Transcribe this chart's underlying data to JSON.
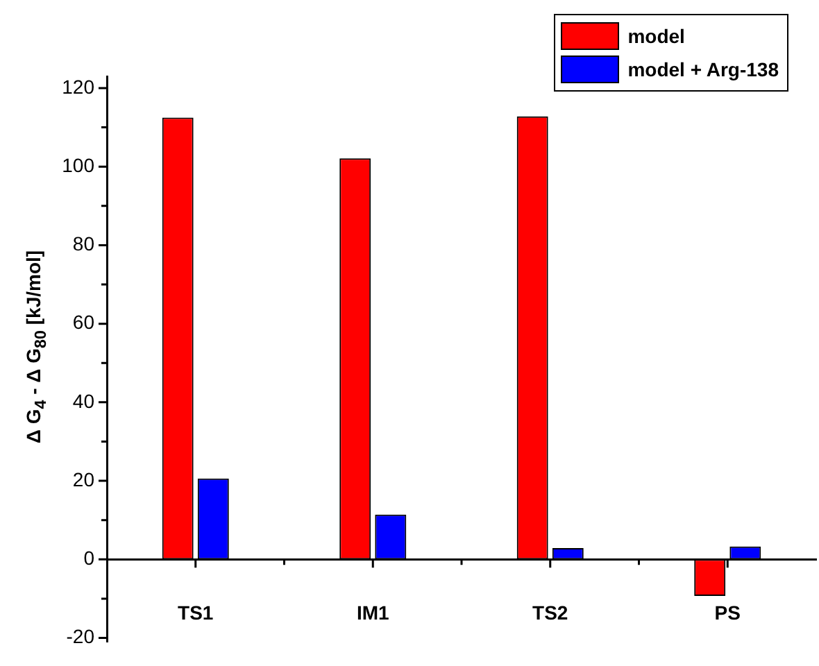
{
  "chart_data": {
    "type": "bar",
    "ylabel": "Δ G$_{4}$ - Δ G$_{80}$ [kJ/mol]",
    "categories": [
      "TS1",
      "IM1",
      "TS2",
      "PS"
    ],
    "series": [
      {
        "name": "model",
        "color": "#ff0000",
        "values": [
          112.5,
          102.1,
          112.8,
          -9.3
        ]
      },
      {
        "name": "model + Arg-138",
        "color": "#0000ff",
        "values": [
          20.6,
          11.4,
          2.9,
          3.3
        ]
      }
    ],
    "ylim": [
      -21,
      123
    ],
    "yticks": [
      -20,
      0,
      20,
      40,
      60,
      80,
      100,
      120
    ],
    "grid": false,
    "legend": "top right"
  }
}
